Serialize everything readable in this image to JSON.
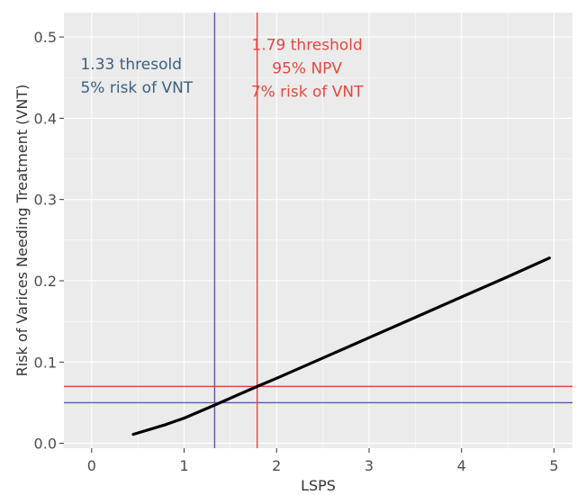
{
  "chart_data": {
    "type": "line",
    "title": "",
    "xlabel": "LSPS",
    "ylabel": "Risk of Varices Needing Treatment (VNT)",
    "xlim": [
      -0.3,
      5.2
    ],
    "ylim": [
      -0.006,
      0.53
    ],
    "x_ticks": [
      0,
      1,
      2,
      3,
      4,
      5
    ],
    "y_ticks": [
      0.0,
      0.1,
      0.2,
      0.3,
      0.4,
      0.5
    ],
    "x_tick_labels": [
      "0",
      "1",
      "2",
      "3",
      "4",
      "5"
    ],
    "y_tick_labels": [
      "0.0",
      "0.1",
      "0.2",
      "0.3",
      "0.4",
      "0.5"
    ],
    "grid": true,
    "background_color": "#ebebeb",
    "grid_color": "#ffffff",
    "series": [
      {
        "color": "#000000",
        "x": [
          0.45,
          0.8,
          1.0,
          1.33,
          1.79,
          2.0,
          2.5,
          3.0,
          3.5,
          4.0,
          4.5,
          4.95
        ],
        "y": [
          0.011,
          0.023,
          0.031,
          0.047,
          0.07,
          0.08,
          0.105,
          0.13,
          0.155,
          0.18,
          0.205,
          0.228
        ]
      }
    ],
    "reference_lines": [
      {
        "orientation": "vertical",
        "value": 1.33,
        "color": "#5b57a6"
      },
      {
        "orientation": "horizontal",
        "value": 0.05,
        "color": "#5b57a6"
      },
      {
        "orientation": "vertical",
        "value": 1.79,
        "color": "#e4473f"
      },
      {
        "orientation": "horizontal",
        "value": 0.07,
        "color": "#e4473f"
      }
    ],
    "annotations": [
      {
        "lines": [
          "1.33 thresold",
          "5% risk of VNT"
        ],
        "color": "#3b5f7d",
        "anchor": "start",
        "x": -0.12,
        "y": 0.46
      },
      {
        "lines": [
          "1.79 threshold",
          "95% NPV",
          "7% risk of VNT"
        ],
        "color": "#e4473f",
        "anchor": "middle",
        "x": 2.33,
        "y": 0.484
      }
    ]
  }
}
